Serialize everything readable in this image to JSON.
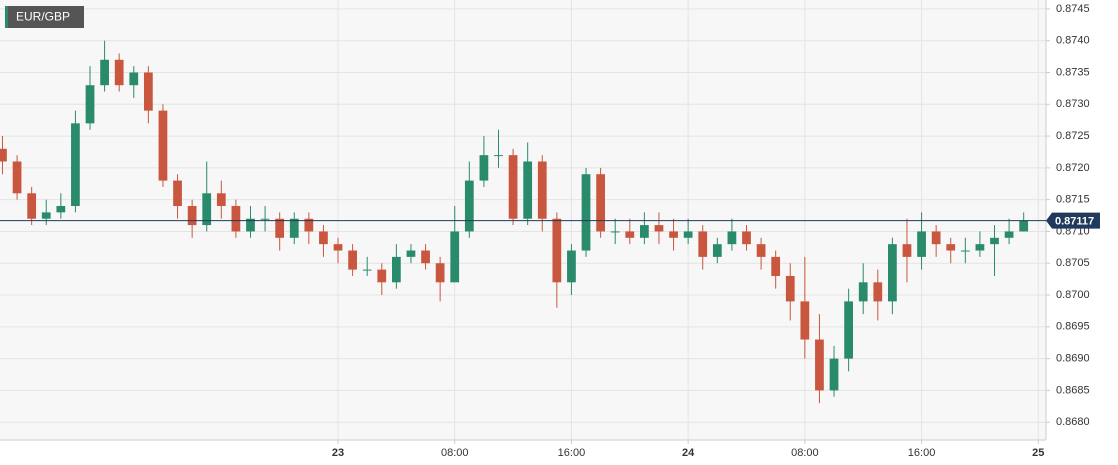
{
  "chart_data": {
    "type": "candlestick",
    "title": "EUR/GBP",
    "x": [
      1,
      2,
      3,
      4,
      5,
      6,
      7,
      8,
      9,
      10,
      11,
      12,
      13,
      14,
      15,
      16,
      17,
      18,
      19,
      20,
      21,
      22,
      23,
      24,
      25,
      26,
      27,
      28,
      29,
      30,
      31,
      32,
      33,
      34,
      35,
      36,
      37,
      38,
      39,
      40,
      41,
      42,
      43,
      44,
      45,
      46,
      47,
      48,
      49,
      50,
      51,
      52,
      53,
      54,
      55,
      56,
      57,
      58,
      59,
      60,
      61,
      62,
      63,
      64,
      65,
      66,
      67,
      68,
      69,
      70,
      71
    ],
    "open": [
      0.8723,
      0.8721,
      0.8716,
      0.8712,
      0.8713,
      0.8714,
      0.8727,
      0.8733,
      0.8737,
      0.8733,
      0.8735,
      0.8729,
      0.8718,
      0.8714,
      0.8711,
      0.8716,
      0.8714,
      0.871,
      0.8712,
      0.8712,
      0.8709,
      0.8712,
      0.871,
      0.8708,
      0.8707,
      0.8704,
      0.8704,
      0.8702,
      0.8706,
      0.8707,
      0.8705,
      0.8702,
      0.871,
      0.8718,
      0.8722,
      0.8722,
      0.8712,
      0.8721,
      0.8712,
      0.8702,
      0.8707,
      0.8719,
      0.871,
      0.871,
      0.8709,
      0.8711,
      0.871,
      0.8709,
      0.871,
      0.8706,
      0.8708,
      0.871,
      0.8708,
      0.8706,
      0.8703,
      0.8699,
      0.8693,
      0.8685,
      0.869,
      0.8699,
      0.8702,
      0.8699,
      0.8708,
      0.8706,
      0.871,
      0.8708,
      0.8707,
      0.8707,
      0.8708,
      0.8709,
      0.871
    ],
    "high": [
      0.8725,
      0.8722,
      0.8717,
      0.8715,
      0.8716,
      0.8729,
      0.8736,
      0.874,
      0.8738,
      0.8736,
      0.8736,
      0.873,
      0.8719,
      0.8715,
      0.8721,
      0.8718,
      0.8715,
      0.8714,
      0.8714,
      0.8713,
      0.8713,
      0.8713,
      0.8711,
      0.8709,
      0.8708,
      0.8706,
      0.8705,
      0.8708,
      0.8708,
      0.8708,
      0.8706,
      0.8714,
      0.8721,
      0.8725,
      0.8726,
      0.8723,
      0.8724,
      0.8722,
      0.8713,
      0.8708,
      0.872,
      0.872,
      0.8712,
      0.8712,
      0.8713,
      0.8713,
      0.8712,
      0.8712,
      0.8711,
      0.8709,
      0.8712,
      0.8711,
      0.8709,
      0.8707,
      0.8705,
      0.8706,
      0.8697,
      0.8692,
      0.8701,
      0.8705,
      0.8704,
      0.8709,
      0.8712,
      0.8713,
      0.8711,
      0.8709,
      0.8709,
      0.871,
      0.8711,
      0.8712,
      0.8713
    ],
    "low": [
      0.8719,
      0.8715,
      0.8711,
      0.8711,
      0.8712,
      0.8713,
      0.8726,
      0.8732,
      0.8732,
      0.8731,
      0.8727,
      0.8717,
      0.8712,
      0.8709,
      0.871,
      0.8712,
      0.8709,
      0.8709,
      0.871,
      0.8707,
      0.8708,
      0.8708,
      0.8706,
      0.8705,
      0.8703,
      0.8703,
      0.87,
      0.8701,
      0.8705,
      0.8704,
      0.8699,
      0.8702,
      0.8709,
      0.8717,
      0.872,
      0.8711,
      0.8711,
      0.871,
      0.8698,
      0.87,
      0.8706,
      0.8709,
      0.8708,
      0.8708,
      0.8708,
      0.8708,
      0.8707,
      0.8708,
      0.8704,
      0.8705,
      0.8707,
      0.8707,
      0.8704,
      0.8701,
      0.8696,
      0.869,
      0.8683,
      0.8684,
      0.8688,
      0.8697,
      0.8696,
      0.8697,
      0.8702,
      0.8704,
      0.8706,
      0.8705,
      0.8705,
      0.8706,
      0.8703,
      0.8708,
      0.871
    ],
    "close": [
      0.8721,
      0.8716,
      0.8712,
      0.8713,
      0.8714,
      0.8727,
      0.8733,
      0.8737,
      0.8733,
      0.8735,
      0.8729,
      0.8718,
      0.8714,
      0.8711,
      0.8716,
      0.8714,
      0.871,
      0.8712,
      0.8712,
      0.8709,
      0.8712,
      0.871,
      0.8708,
      0.8707,
      0.8704,
      0.8704,
      0.8702,
      0.8706,
      0.8707,
      0.8705,
      0.8702,
      0.871,
      0.8718,
      0.8722,
      0.8722,
      0.8712,
      0.8721,
      0.8712,
      0.8702,
      0.8707,
      0.8719,
      0.871,
      0.871,
      0.8709,
      0.8711,
      0.871,
      0.8709,
      0.871,
      0.8706,
      0.8708,
      0.871,
      0.8708,
      0.8706,
      0.8703,
      0.8699,
      0.8693,
      0.8685,
      0.869,
      0.8699,
      0.8702,
      0.8699,
      0.8708,
      0.8706,
      0.871,
      0.8708,
      0.8707,
      0.8707,
      0.8708,
      0.8709,
      0.871,
      0.87117
    ],
    "up_color": "#2a8a6c",
    "down_color": "#c9573f",
    "last_price": 0.87117,
    "xlim": [
      0.83,
      72.53
    ],
    "xticks": [
      {
        "value": 24,
        "label": "23"
      },
      {
        "value": 32,
        "label": "08:00"
      },
      {
        "value": 40,
        "label": "16:00"
      },
      {
        "value": 48,
        "label": "24"
      },
      {
        "value": 56,
        "label": "08:00"
      },
      {
        "value": 64,
        "label": "16:00"
      },
      {
        "value": 72,
        "label": "25"
      }
    ],
    "ylim": [
      0.86772,
      0.87464
    ],
    "yticks": [
      {
        "value": 0.868,
        "label": "0.8680"
      },
      0.8685,
      {
        "value": 0.869,
        "label": "0.8690"
      },
      0.8695,
      {
        "value": 0.87,
        "label": "0.8700"
      },
      0.8705,
      {
        "value": 0.871,
        "label": "0.8710"
      },
      0.8715,
      {
        "value": 0.872,
        "label": "0.8720"
      },
      0.8725,
      {
        "value": 0.873,
        "label": "0.8730"
      },
      0.8735,
      {
        "value": 0.874,
        "label": "0.8740"
      },
      0.8745
    ],
    "grid": true
  }
}
